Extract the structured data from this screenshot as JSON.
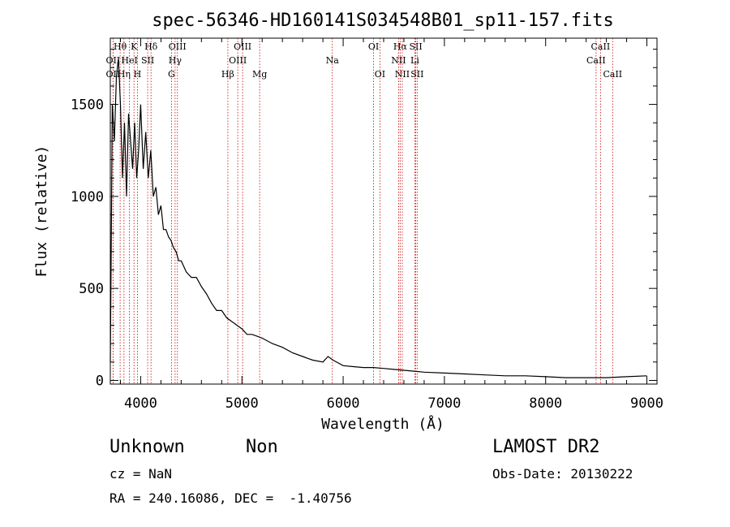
{
  "chart_data": {
    "type": "line",
    "title": "spec-56346-HD160141S034548B01_sp11-157.fits",
    "xlabel": "Wavelength (Å)",
    "ylabel": "Flux (relative)",
    "xlim": [
      3700,
      9100
    ],
    "ylim": [
      -20,
      1860
    ],
    "x_ticks": [
      4000,
      5000,
      6000,
      7000,
      8000,
      9000
    ],
    "y_ticks": [
      0,
      500,
      1000,
      1500
    ],
    "grid": false,
    "line_color": "#000000",
    "marker_color": "#cc0000",
    "series": [
      {
        "x": [
          3700,
          3720,
          3740,
          3760,
          3780,
          3800,
          3820,
          3840,
          3860,
          3880,
          3900,
          3920,
          3940,
          3960,
          3980,
          4000,
          4025,
          4050,
          4075,
          4100,
          4125,
          4150,
          4175,
          4200,
          4225,
          4250,
          4275,
          4300,
          4325,
          4350,
          4375,
          4400,
          4450,
          4500,
          4550,
          4600,
          4650,
          4700,
          4750,
          4800,
          4850,
          4900,
          4950,
          5000,
          5050,
          5100,
          5150,
          5200,
          5300,
          5400,
          5500,
          5600,
          5700,
          5800,
          5850,
          5900,
          6000,
          6100,
          6200,
          6300,
          6400,
          6500,
          6600,
          6700,
          6800,
          7000,
          7200,
          7400,
          7600,
          7800,
          8000,
          8200,
          8400,
          8600,
          8800,
          9000
        ],
        "y": [
          100,
          1500,
          1300,
          1650,
          1750,
          1500,
          1100,
          1400,
          1000,
          1450,
          1300,
          1150,
          1400,
          1100,
          1250,
          1500,
          1150,
          1350,
          1100,
          1250,
          1000,
          1050,
          900,
          950,
          820,
          820,
          780,
          760,
          720,
          700,
          650,
          650,
          590,
          560,
          560,
          510,
          470,
          420,
          380,
          380,
          340,
          320,
          300,
          280,
          250,
          250,
          240,
          230,
          200,
          180,
          150,
          130,
          110,
          100,
          130,
          110,
          80,
          75,
          70,
          70,
          65,
          60,
          55,
          50,
          45,
          40,
          35,
          30,
          25,
          25,
          20,
          15,
          15,
          15,
          20,
          25
        ]
      }
    ],
    "line_markers": [
      {
        "label": "Hθ",
        "x": 3797,
        "row": 1
      },
      {
        "label": "OII",
        "x": 3727,
        "row": 2
      },
      {
        "label": "OII",
        "x": 3727,
        "row": 3
      },
      {
        "label": "K",
        "x": 3934,
        "row": 1
      },
      {
        "label": "HeI",
        "x": 3889,
        "row": 2
      },
      {
        "label": "Hη",
        "x": 3835,
        "row": 3
      },
      {
        "label": "H",
        "x": 3968,
        "row": 3
      },
      {
        "label": "Hδ",
        "x": 4102,
        "row": 1
      },
      {
        "label": "SII",
        "x": 4069,
        "row": 2
      },
      {
        "label": "OIII",
        "x": 4363,
        "row": 1
      },
      {
        "label": "Hγ",
        "x": 4340,
        "row": 2
      },
      {
        "label": "G",
        "x": 4304,
        "row": 3
      },
      {
        "label": "OIII",
        "x": 5007,
        "row": 1
      },
      {
        "label": "OIII",
        "x": 4959,
        "row": 2
      },
      {
        "label": "Hβ",
        "x": 4861,
        "row": 3
      },
      {
        "label": "Mg",
        "x": 5175,
        "row": 3
      },
      {
        "label": "Na",
        "x": 5893,
        "row": 2
      },
      {
        "label": "OI",
        "x": 6300,
        "row": 1
      },
      {
        "label": "OI",
        "x": 6363,
        "row": 3
      },
      {
        "label": "Hα",
        "x": 6563,
        "row": 1
      },
      {
        "label": "SII",
        "x": 6717,
        "row": 1
      },
      {
        "label": "NII",
        "x": 6548,
        "row": 2
      },
      {
        "label": "Li",
        "x": 6708,
        "row": 2
      },
      {
        "label": "NII",
        "x": 6584,
        "row": 3
      },
      {
        "label": "SII",
        "x": 6731,
        "row": 3
      },
      {
        "label": "CaII",
        "x": 8542,
        "row": 1
      },
      {
        "label": "CaII",
        "x": 8498,
        "row": 2
      },
      {
        "label": "CaII",
        "x": 8662,
        "row": 3
      }
    ]
  },
  "info": {
    "class_name": "Unknown",
    "subclass": "Non",
    "survey": "LAMOST DR2",
    "cz": "cz = NaN",
    "obs_date": "Obs-Date: 20130222",
    "coords": "RA = 240.16086, DEC =  -1.40756"
  }
}
